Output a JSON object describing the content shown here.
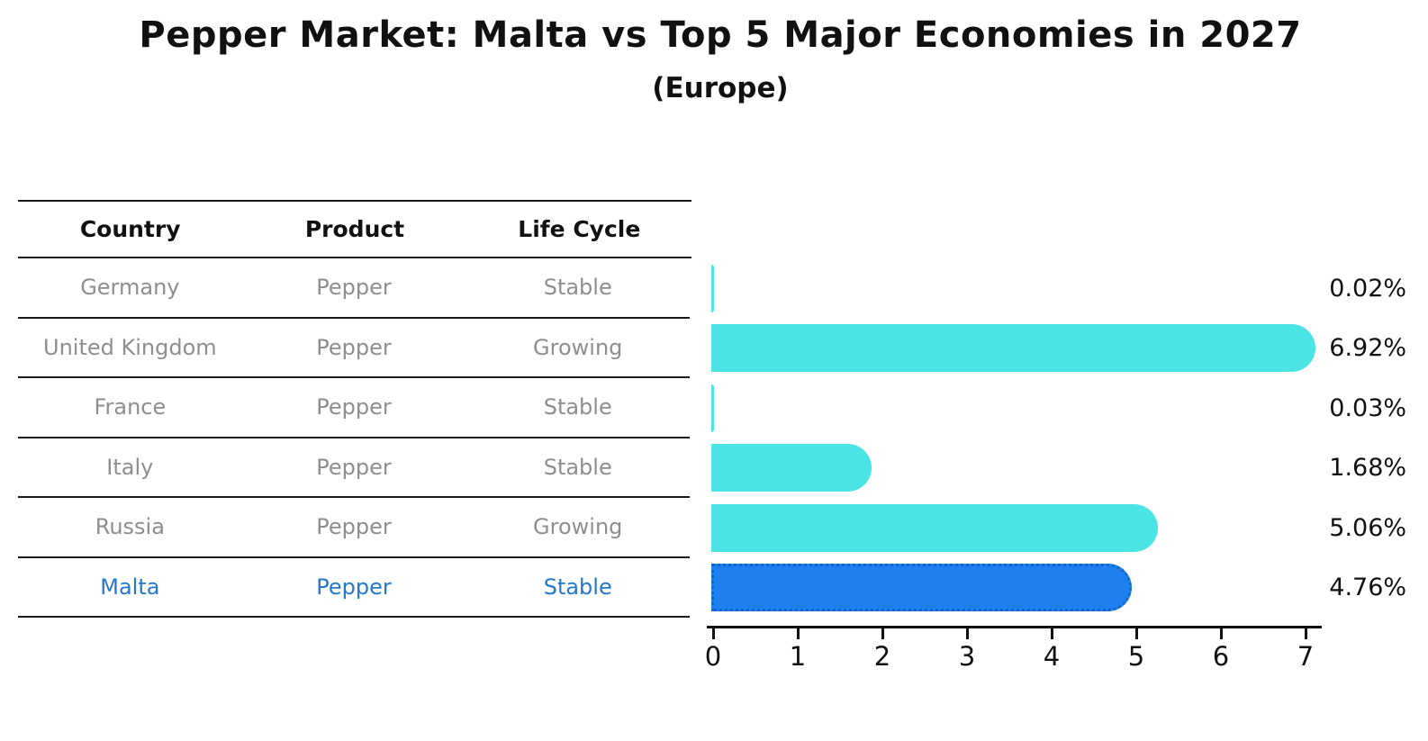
{
  "title": "Pepper Market: Malta vs Top 5 Major Economies in 2027",
  "subtitle": "(Europe)",
  "table": {
    "headers": [
      "Country",
      "Product",
      "Life Cycle"
    ],
    "rows": [
      {
        "country": "Germany",
        "product": "Pepper",
        "life_cycle": "Stable",
        "highlighted": false
      },
      {
        "country": "United Kingdom",
        "product": "Pepper",
        "life_cycle": "Growing",
        "highlighted": false
      },
      {
        "country": "France",
        "product": "Pepper",
        "life_cycle": "Stable",
        "highlighted": false
      },
      {
        "country": "Italy",
        "product": "Pepper",
        "life_cycle": "Stable",
        "highlighted": false
      },
      {
        "country": "Russia",
        "product": "Pepper",
        "life_cycle": "Growing",
        "highlighted": false
      },
      {
        "country": "Malta",
        "product": "Pepper",
        "life_cycle": "Stable",
        "highlighted": true
      }
    ]
  },
  "chart_data": {
    "type": "bar",
    "orientation": "horizontal",
    "title": "Pepper Market: Malta vs Top 5 Major Economies in 2027",
    "subtitle": "(Europe)",
    "categories": [
      "Germany",
      "United Kingdom",
      "France",
      "Italy",
      "Russia",
      "Malta"
    ],
    "values": [
      0.02,
      6.92,
      0.03,
      1.68,
      5.06,
      4.76
    ],
    "value_labels": [
      "0.02%",
      "6.92%",
      "0.03%",
      "1.68%",
      "5.06%",
      "4.76%"
    ],
    "xlabel": "",
    "ylabel": "",
    "xlim": [
      0,
      7.2
    ],
    "xticks": [
      0,
      1,
      2,
      3,
      4,
      5,
      6,
      7
    ],
    "grid": false,
    "legend": false,
    "highlight_index": 5
  },
  "colors": {
    "bar": "#4AE4E4",
    "highlight_bar": "#1E80F0",
    "highlight_border": "#1565C0",
    "highlight_text": "#2478CC",
    "row_text": "#8E8E8E",
    "header_text": "#111111",
    "value_text": "#111111",
    "axis": "#111111"
  }
}
